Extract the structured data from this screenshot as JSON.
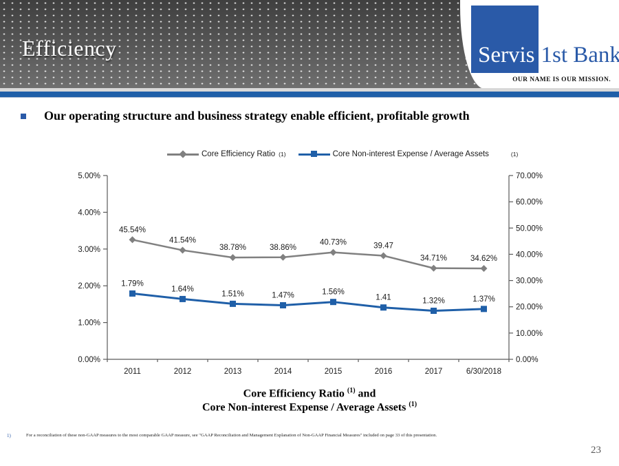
{
  "header": {
    "title": "Efficiency",
    "logo": {
      "part1": "Servis",
      "part2": "1st Bank",
      "reg": "®",
      "tagline": "OUR NAME IS OUR MISSION."
    }
  },
  "bullet": {
    "text": "Our operating structure and business strategy enable efficient, profitable growth"
  },
  "chart_data": {
    "type": "line",
    "categories": [
      "2011",
      "2012",
      "2013",
      "2014",
      "2015",
      "2016",
      "2017",
      "6/30/2018"
    ],
    "series": [
      {
        "name": "Core Efficiency Ratio",
        "footnote_ref": "(1)",
        "axis": "right",
        "color": "#808080",
        "marker": "diamond",
        "values": [
          45.54,
          41.54,
          38.78,
          38.86,
          40.73,
          39.47,
          34.71,
          34.62
        ],
        "labels": [
          "45.54%",
          "41.54%",
          "38.78%",
          "38.86%",
          "40.73%",
          "39.47",
          "34.71%",
          "34.62%"
        ]
      },
      {
        "name": "Core Non-interest Expense / Average Assets",
        "footnote_ref": "(1)",
        "axis": "left",
        "color": "#1f5fa8",
        "marker": "square",
        "values": [
          1.79,
          1.64,
          1.51,
          1.47,
          1.56,
          1.41,
          1.32,
          1.37
        ],
        "labels": [
          "1.79%",
          "1.64%",
          "1.51%",
          "1.47%",
          "1.56%",
          "1.41",
          "1.32%",
          "1.37%"
        ]
      }
    ],
    "left_axis": {
      "min": 0,
      "max": 5,
      "ticks": [
        "0.00%",
        "1.00%",
        "2.00%",
        "3.00%",
        "4.00%",
        "5.00%"
      ]
    },
    "right_axis": {
      "min": 0,
      "max": 70,
      "ticks": [
        "0.00%",
        "10.00%",
        "20.00%",
        "30.00%",
        "40.00%",
        "50.00%",
        "60.00%",
        "70.00%"
      ]
    },
    "grid": false,
    "legend_position": "top",
    "xlabel": "",
    "title_line1": "Core Efficiency Ratio",
    "title_sup1": "(1)",
    "title_join": " and",
    "title_line2": "Core Non-interest Expense / Average Assets",
    "title_sup2": "(1)",
    "axis_color": "#595959",
    "label_color": "#1a1a1a"
  },
  "footnote": {
    "marker": "1)",
    "text": "For a reconciliation of these non-GAAP measures to the most comparable GAAP measure, see \"GAAP Reconciliation and Management Explanation of Non-GAAP Financial Measures\" included on page 33 of this presentation."
  },
  "page_number": "23",
  "colors": {
    "accent_blue": "#1f5fa8",
    "logo_blue": "#2a5aa8",
    "series_gray": "#808080",
    "header_dark": "#3f3f3f"
  }
}
